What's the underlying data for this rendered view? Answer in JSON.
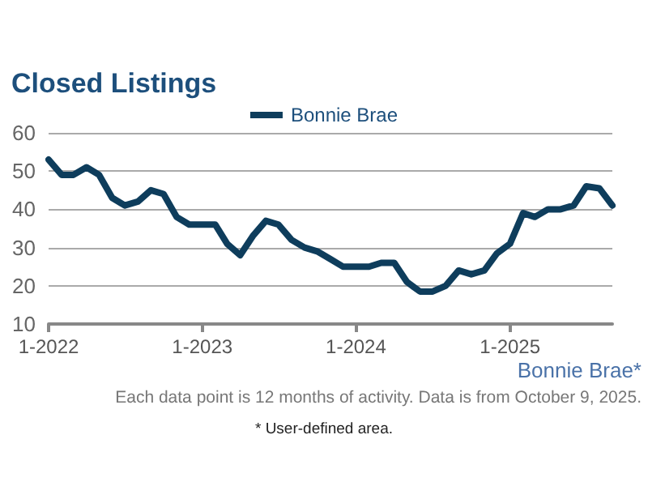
{
  "chart_data": {
    "type": "line",
    "title": "Closed Listings",
    "x": [
      "2022-01",
      "2022-02",
      "2022-03",
      "2022-04",
      "2022-05",
      "2022-06",
      "2022-07",
      "2022-08",
      "2022-09",
      "2022-10",
      "2022-11",
      "2022-12",
      "2023-01",
      "2023-02",
      "2023-03",
      "2023-04",
      "2023-05",
      "2023-06",
      "2023-07",
      "2023-08",
      "2023-09",
      "2023-10",
      "2023-11",
      "2023-12",
      "2024-01",
      "2024-02",
      "2024-03",
      "2024-04",
      "2024-05",
      "2024-06",
      "2024-07",
      "2024-08",
      "2024-09",
      "2024-10",
      "2024-11",
      "2024-12",
      "2025-01",
      "2025-02",
      "2025-03",
      "2025-04",
      "2025-05",
      "2025-06",
      "2025-07",
      "2025-08",
      "2025-09"
    ],
    "series": [
      {
        "name": "Bonnie Brae",
        "color": "#0e3d5c",
        "values": [
          53,
          49,
          49,
          51,
          49,
          43,
          41,
          42,
          45,
          44,
          38,
          36,
          36,
          36,
          31,
          28,
          33,
          37,
          36,
          32,
          30,
          29,
          27,
          25,
          25,
          25,
          26,
          26,
          21,
          18.5,
          18.5,
          20,
          24,
          23,
          24,
          28.5,
          31,
          39,
          38,
          40,
          40,
          41,
          46,
          45.5,
          41
        ]
      }
    ],
    "xlim": [
      "2022-01",
      "2025-09"
    ],
    "xticks": [
      {
        "value": "2022-01",
        "label": "1-2022"
      },
      {
        "value": "2023-01",
        "label": "1-2023"
      },
      {
        "value": "2024-01",
        "label": "1-2024"
      },
      {
        "value": "2025-01",
        "label": "1-2025"
      }
    ],
    "ylim": [
      10,
      60
    ],
    "yticks": [
      10,
      20,
      30,
      40,
      50,
      60
    ],
    "grid": "y",
    "legend": "top",
    "marker": "none",
    "line_style": "solid",
    "annotations": [
      "Bonnie Brae*",
      "Each data point is 12 months of activity. Data is from October 9, 2025.",
      "* User-defined area."
    ]
  }
}
